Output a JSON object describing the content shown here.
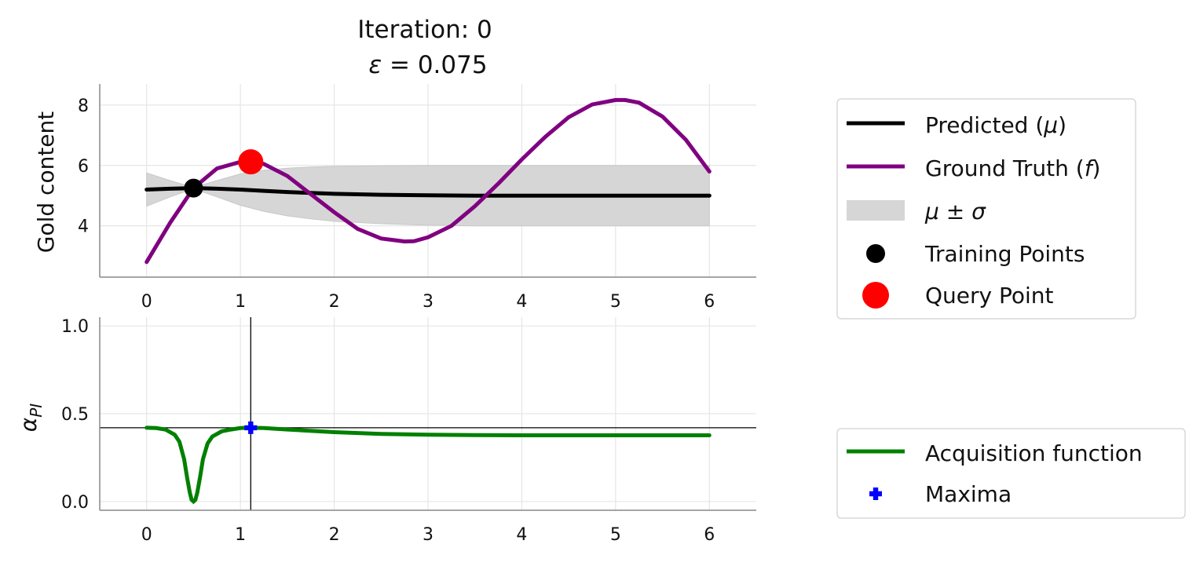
{
  "title_lines": [
    "Iteration: 0",
    "ε = 0.075"
  ],
  "colors": {
    "predicted": "#000000",
    "ground_truth": "#800080",
    "band": "#d6d6d6",
    "training": "#000000",
    "query": "#ff0000",
    "acquisition": "#008000",
    "maxima": "#0000ff",
    "grid": "#e6e6e6",
    "axis": "#888888"
  },
  "chart_data": [
    {
      "type": "line",
      "ylabel": "Gold content",
      "xlim": [
        -0.5,
        6.5
      ],
      "ylim": [
        2.3,
        8.7
      ],
      "xticks": [
        0,
        1,
        2,
        3,
        4,
        5,
        6
      ],
      "yticks": [
        4,
        6,
        8
      ],
      "grid": true,
      "legend_position": "right",
      "series": [
        {
          "name": "Predicted (μ)",
          "x": [
            0,
            0.25,
            0.5,
            0.75,
            1,
            1.25,
            1.5,
            1.75,
            2,
            2.5,
            3,
            3.5,
            4,
            4.5,
            5,
            5.5,
            6
          ],
          "values": [
            5.2,
            5.23,
            5.25,
            5.23,
            5.2,
            5.16,
            5.12,
            5.09,
            5.06,
            5.03,
            5.01,
            5.0,
            5.0,
            5.0,
            5.0,
            5.0,
            5.0
          ]
        },
        {
          "name": "Ground Truth (f)",
          "x": [
            0,
            0.25,
            0.5,
            0.75,
            1,
            1.1,
            1.25,
            1.5,
            1.75,
            2,
            2.25,
            2.5,
            2.75,
            2.85,
            3,
            3.25,
            3.5,
            3.75,
            4,
            4.25,
            4.5,
            4.75,
            5,
            5.1,
            5.25,
            5.5,
            5.75,
            6
          ],
          "values": [
            2.8,
            4.1,
            5.25,
            5.9,
            6.12,
            6.14,
            6.05,
            5.65,
            5.05,
            4.45,
            3.9,
            3.58,
            3.48,
            3.49,
            3.62,
            4.0,
            4.65,
            5.4,
            6.2,
            6.95,
            7.6,
            8.02,
            8.17,
            8.17,
            8.08,
            7.62,
            6.85,
            5.8
          ]
        },
        {
          "name": "μ ± σ",
          "type": "area",
          "x": [
            0,
            0.25,
            0.5,
            0.75,
            1,
            1.25,
            1.5,
            1.75,
            2,
            2.5,
            3,
            3.5,
            4,
            4.5,
            5,
            5.5,
            6
          ],
          "upper": [
            5.75,
            5.5,
            5.27,
            5.5,
            5.72,
            5.84,
            5.91,
            5.95,
            5.97,
            5.99,
            6.0,
            6.0,
            6.0,
            6.0,
            6.0,
            6.0,
            6.0
          ],
          "lower": [
            4.65,
            4.96,
            5.23,
            4.96,
            4.68,
            4.48,
            4.33,
            4.23,
            4.15,
            4.07,
            4.02,
            4.0,
            4.0,
            4.0,
            4.0,
            4.0,
            4.0
          ]
        },
        {
          "name": "Training Points",
          "type": "scatter",
          "x": [
            0.5
          ],
          "values": [
            5.25
          ]
        },
        {
          "name": "Query Point",
          "type": "scatter",
          "x": [
            1.11
          ],
          "values": [
            6.12
          ]
        }
      ]
    },
    {
      "type": "line",
      "ylabel": "α_PI",
      "xlim": [
        -0.5,
        6.5
      ],
      "ylim": [
        -0.05,
        1.05
      ],
      "xticks": [
        0,
        1,
        2,
        3,
        4,
        5,
        6
      ],
      "yticks": [
        0.0,
        0.5,
        1.0
      ],
      "grid": true,
      "legend_position": "right",
      "crosshair": {
        "x": 1.11,
        "y": 0.42
      },
      "series": [
        {
          "name": "Acquisition function",
          "x": [
            0,
            0.1,
            0.2,
            0.3,
            0.35,
            0.4,
            0.43,
            0.46,
            0.48,
            0.5,
            0.52,
            0.54,
            0.57,
            0.6,
            0.65,
            0.7,
            0.8,
            0.9,
            1.0,
            1.1,
            1.25,
            1.5,
            2,
            2.5,
            3,
            3.5,
            4,
            5,
            6
          ],
          "values": [
            0.42,
            0.418,
            0.41,
            0.38,
            0.34,
            0.24,
            0.14,
            0.05,
            0.01,
            0.0,
            0.01,
            0.05,
            0.14,
            0.24,
            0.33,
            0.37,
            0.4,
            0.41,
            0.418,
            0.42,
            0.418,
            0.41,
            0.395,
            0.385,
            0.38,
            0.378,
            0.377,
            0.377,
            0.377
          ]
        },
        {
          "name": "Maxima",
          "type": "scatter",
          "x": [
            1.11
          ],
          "values": [
            0.42
          ]
        }
      ]
    }
  ]
}
